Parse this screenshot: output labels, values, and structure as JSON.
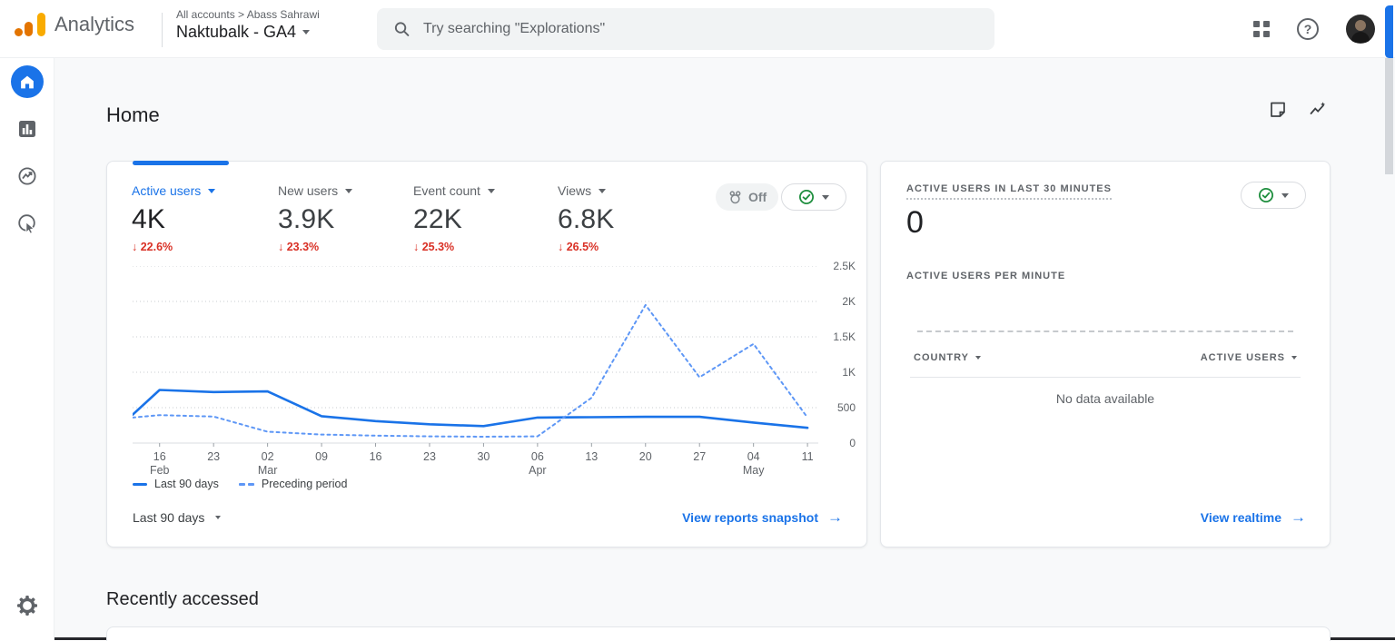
{
  "colors": {
    "accent": "#1a73e8",
    "negative": "#d93025",
    "ok_green": "#1e8e3e"
  },
  "header": {
    "product": "Analytics",
    "breadcrumb": {
      "root": "All accounts",
      "separator": ">",
      "account": "Abass Sahrawi"
    },
    "property": "Naktubalk - GA4",
    "search_placeholder": "Try searching \"Explorations\""
  },
  "sidebar": {
    "items": [
      "home",
      "reports",
      "explore",
      "advertising",
      "admin"
    ]
  },
  "page": {
    "title": "Home",
    "section_heading": "Recently accessed"
  },
  "overview_card": {
    "metrics": [
      {
        "label": "Active users",
        "value": "4K",
        "delta": "↓ 22.6%"
      },
      {
        "label": "New users",
        "value": "3.9K",
        "delta": "↓ 23.3%"
      },
      {
        "label": "Event count",
        "value": "22K",
        "delta": "↓ 25.3%"
      },
      {
        "label": "Views",
        "value": "6.8K",
        "delta": "↓ 26.5%"
      }
    ],
    "off_badge_label": "Off",
    "range_selector": "Last 90 days",
    "link_label": "View reports snapshot",
    "link_arrow": "→"
  },
  "realtime_card": {
    "title": "ACTIVE USERS IN LAST 30 MINUTES",
    "active_users_count": "0",
    "per_minute_label": "ACTIVE USERS PER MINUTE",
    "table": {
      "country_header": "COUNTRY",
      "active_users_header": "ACTIVE USERS",
      "empty_message": "No data available"
    },
    "link_label": "View realtime",
    "link_arrow": "→"
  },
  "chart_data": {
    "type": "line",
    "title": "",
    "xlabel": "",
    "ylabel": "",
    "ylim": [
      0,
      2500
    ],
    "y_ticks": [
      "0",
      "500",
      "1K",
      "1.5K",
      "2K",
      "2.5K"
    ],
    "grid": "horizontal-dotted",
    "legend_position": "bottom-left",
    "x_ticks": [
      {
        "day": "16",
        "month": "Feb"
      },
      {
        "day": "23",
        "month": ""
      },
      {
        "day": "02",
        "month": "Mar"
      },
      {
        "day": "09",
        "month": ""
      },
      {
        "day": "16",
        "month": ""
      },
      {
        "day": "23",
        "month": ""
      },
      {
        "day": "30",
        "month": ""
      },
      {
        "day": "06",
        "month": "Apr"
      },
      {
        "day": "13",
        "month": ""
      },
      {
        "day": "20",
        "month": ""
      },
      {
        "day": "27",
        "month": ""
      },
      {
        "day": "04",
        "month": "May"
      },
      {
        "day": "11",
        "month": ""
      }
    ],
    "series": [
      {
        "name": "Last 90 days",
        "style": "solid",
        "color": "#1a73e8",
        "x": [
          -0.5,
          0,
          1,
          2,
          3,
          4,
          5,
          6,
          7,
          8,
          9,
          10,
          11,
          12
        ],
        "values": [
          400,
          750,
          720,
          730,
          380,
          310,
          265,
          240,
          360,
          365,
          370,
          370,
          290,
          215
        ]
      },
      {
        "name": "Preceding period",
        "style": "dashed",
        "color": "#5e97f6",
        "x": [
          -0.5,
          0,
          1,
          2,
          3,
          4,
          5,
          6,
          7,
          8,
          9,
          10,
          11,
          12
        ],
        "values": [
          360,
          395,
          375,
          160,
          120,
          105,
          95,
          90,
          95,
          640,
          1950,
          930,
          1400,
          360
        ]
      }
    ]
  }
}
